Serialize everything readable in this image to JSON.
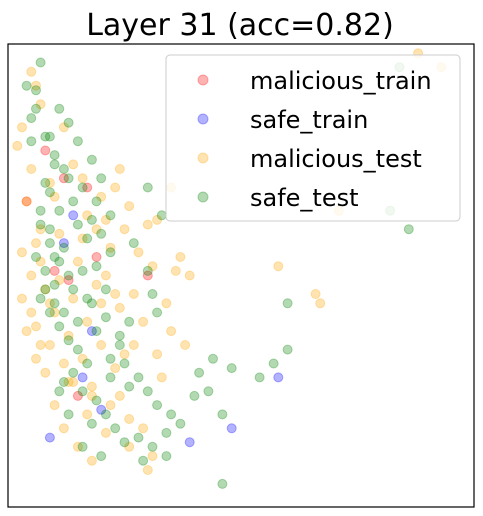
{
  "chart_data": {
    "type": "scatter",
    "title": "Layer 31 (acc=0.82)",
    "xlabel": "",
    "ylabel": "",
    "grid": false,
    "axis_ticks": false,
    "legend_position": "top-right",
    "marker": "circle",
    "alpha": 0.3,
    "xlim": [
      0,
      100
    ],
    "ylim": [
      0,
      100
    ],
    "series": [
      {
        "name": "malicious_train",
        "color": "#ff0000",
        "points": [
          [
            4,
            66
          ],
          [
            17,
            69
          ],
          [
            10,
            51
          ],
          [
            8,
            77
          ],
          [
            13,
            49
          ],
          [
            30,
            50
          ],
          [
            19,
            54
          ],
          [
            12,
            71
          ],
          [
            15,
            24
          ]
        ]
      },
      {
        "name": "safe_train",
        "color": "#0000ff",
        "points": [
          [
            12,
            57
          ],
          [
            18,
            38
          ],
          [
            58,
            28
          ],
          [
            39,
            14
          ],
          [
            48,
            17
          ],
          [
            14,
            63
          ],
          [
            9,
            15
          ],
          [
            20,
            21
          ],
          [
            16,
            28
          ]
        ]
      },
      {
        "name": "malicious_test",
        "color": "#ffa500",
        "points": [
          [
            5,
            94
          ],
          [
            6,
            91
          ],
          [
            3,
            82
          ],
          [
            7,
            87
          ],
          [
            2,
            78
          ],
          [
            5,
            73
          ],
          [
            9,
            70
          ],
          [
            4,
            66
          ],
          [
            7,
            60
          ],
          [
            3,
            55
          ],
          [
            5,
            50
          ],
          [
            8,
            47
          ],
          [
            10,
            42
          ],
          [
            6,
            39
          ],
          [
            9,
            35
          ],
          [
            12,
            31
          ],
          [
            14,
            27
          ],
          [
            18,
            24
          ],
          [
            22,
            22
          ],
          [
            26,
            19
          ],
          [
            29,
            17
          ],
          [
            24,
            24
          ],
          [
            31,
            11
          ],
          [
            14,
            45
          ],
          [
            17,
            40
          ],
          [
            20,
            35
          ],
          [
            23,
            30
          ],
          [
            19,
            48
          ],
          [
            22,
            56
          ],
          [
            25,
            60
          ],
          [
            28,
            55
          ],
          [
            31,
            52
          ],
          [
            26,
            65
          ],
          [
            32,
            62
          ],
          [
            23,
            69
          ],
          [
            29,
            40
          ],
          [
            34,
            44
          ],
          [
            36,
            51
          ],
          [
            38,
            35
          ],
          [
            30,
            61
          ],
          [
            27,
            46
          ],
          [
            33,
            28
          ],
          [
            17,
            63
          ],
          [
            11,
            49
          ],
          [
            15,
            53
          ],
          [
            21,
            50
          ],
          [
            13,
            37
          ],
          [
            16,
            32
          ],
          [
            8,
            29
          ],
          [
            10,
            22
          ],
          [
            12,
            17
          ],
          [
            15,
            13
          ],
          [
            18,
            10
          ],
          [
            16,
            58
          ],
          [
            20,
            67
          ],
          [
            24,
            73
          ],
          [
            12,
            82
          ],
          [
            14,
            74
          ],
          [
            21,
            62
          ],
          [
            11,
            59
          ],
          [
            7,
            53
          ],
          [
            9,
            44
          ],
          [
            4,
            38
          ],
          [
            6,
            32
          ],
          [
            13,
            27
          ],
          [
            17,
            20
          ],
          [
            21,
            16
          ],
          [
            26,
            13
          ],
          [
            30,
            8
          ],
          [
            35,
            69
          ],
          [
            37,
            54
          ],
          [
            39,
            50
          ],
          [
            71,
            64
          ],
          [
            58,
            52
          ],
          [
            66,
            46
          ],
          [
            67,
            44
          ],
          [
            93,
            95
          ],
          [
            88,
            98
          ],
          [
            24,
            43
          ],
          [
            27,
            35
          ],
          [
            32,
            33
          ],
          [
            35,
            38
          ],
          [
            20,
            44
          ],
          [
            18,
            26
          ],
          [
            10,
            67
          ],
          [
            6,
            57
          ],
          [
            3,
            45
          ],
          [
            5,
            42
          ],
          [
            7,
            35
          ],
          [
            16,
            71
          ],
          [
            19,
            60
          ],
          [
            23,
            46
          ],
          [
            25,
            33
          ]
        ]
      },
      {
        "name": "safe_test",
        "color": "#008000",
        "points": [
          [
            6,
            90
          ],
          [
            5,
            84
          ],
          [
            8,
            80
          ],
          [
            10,
            76
          ],
          [
            12,
            73
          ],
          [
            9,
            68
          ],
          [
            11,
            64
          ],
          [
            7,
            61
          ],
          [
            9,
            57
          ],
          [
            6,
            54
          ],
          [
            8,
            51
          ],
          [
            10,
            48
          ],
          [
            7,
            45
          ],
          [
            9,
            42
          ],
          [
            11,
            39
          ],
          [
            13,
            36
          ],
          [
            15,
            34
          ],
          [
            17,
            31
          ],
          [
            14,
            29
          ],
          [
            12,
            27
          ],
          [
            16,
            25
          ],
          [
            19,
            23
          ],
          [
            21,
            20
          ],
          [
            18,
            18
          ],
          [
            23,
            17
          ],
          [
            25,
            14
          ],
          [
            28,
            15
          ],
          [
            31,
            13
          ],
          [
            34,
            11
          ],
          [
            29,
            10
          ],
          [
            20,
            11
          ],
          [
            16,
            13
          ],
          [
            13,
            20
          ],
          [
            11,
            25
          ],
          [
            15,
            40
          ],
          [
            18,
            44
          ],
          [
            21,
            47
          ],
          [
            19,
            52
          ],
          [
            22,
            55
          ],
          [
            17,
            58
          ],
          [
            15,
            61
          ],
          [
            14,
            66
          ],
          [
            16,
            69
          ],
          [
            13,
            71
          ],
          [
            19,
            66
          ],
          [
            12,
            56
          ],
          [
            10,
            54
          ],
          [
            8,
            47
          ],
          [
            10,
            44
          ],
          [
            12,
            42
          ],
          [
            14,
            47
          ],
          [
            16,
            51
          ],
          [
            20,
            59
          ],
          [
            18,
            62
          ],
          [
            25,
            31
          ],
          [
            28,
            28
          ],
          [
            30,
            25
          ],
          [
            32,
            22
          ],
          [
            35,
            20
          ],
          [
            37,
            18
          ],
          [
            40,
            24
          ],
          [
            43,
            25
          ],
          [
            46,
            20
          ],
          [
            41,
            29
          ],
          [
            44,
            32
          ],
          [
            48,
            30
          ],
          [
            54,
            28
          ],
          [
            57,
            31
          ],
          [
            60,
            34
          ],
          [
            32,
            42
          ],
          [
            24,
            37
          ],
          [
            26,
            40
          ],
          [
            31,
            46
          ],
          [
            30,
            51
          ],
          [
            27,
            57
          ],
          [
            33,
            63
          ],
          [
            30,
            69
          ],
          [
            22,
            63
          ],
          [
            20,
            71
          ],
          [
            18,
            75
          ],
          [
            15,
            79
          ],
          [
            13,
            83
          ],
          [
            11,
            86
          ],
          [
            9,
            80
          ],
          [
            84,
            95
          ],
          [
            82,
            64
          ],
          [
            86,
            60
          ],
          [
            60,
            44
          ],
          [
            46,
            5
          ],
          [
            34,
            16
          ],
          [
            26,
            26
          ],
          [
            22,
            28
          ],
          [
            22,
            32
          ],
          [
            24,
            35
          ],
          [
            19,
            38
          ],
          [
            21,
            41
          ],
          [
            17,
            45
          ],
          [
            13,
            50
          ],
          [
            11,
            53
          ],
          [
            9,
            60
          ],
          [
            7,
            64
          ],
          [
            8,
            70
          ],
          [
            10,
            74
          ],
          [
            5,
            79
          ],
          [
            6,
            86
          ],
          [
            4,
            91
          ],
          [
            7,
            96
          ]
        ]
      }
    ]
  }
}
